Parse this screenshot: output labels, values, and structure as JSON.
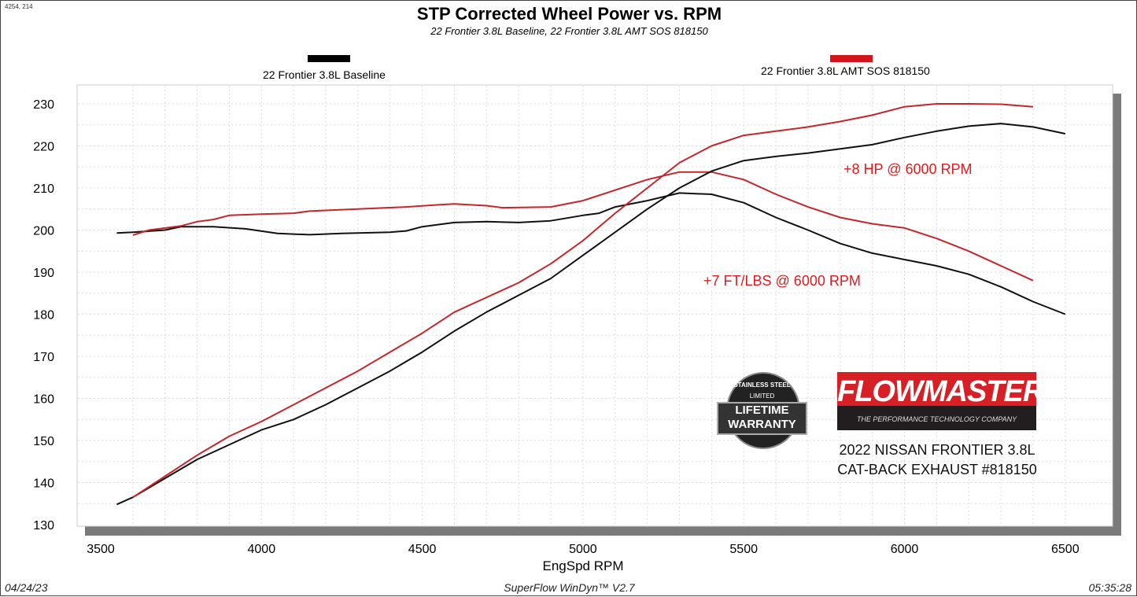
{
  "header": {
    "coord_readout": "4254, 214",
    "title": "STP Corrected Wheel Power vs. RPM",
    "subtitle": "22 Frontier 3.8L Baseline, 22 Frontier 3.8L AMT SOS 818150"
  },
  "footer": {
    "date": "04/24/23",
    "software": "SuperFlow WinDyn™ V2.7",
    "time": "05:35:28"
  },
  "logos": {
    "warranty": {
      "top": "STAINLESS STEEL",
      "brand": "FLOWMASTER",
      "mid": "LIMITED",
      "line1": "LIFETIME",
      "line2": "WARRANTY"
    },
    "flowmaster": {
      "name": "FLOWMASTER",
      "tagline": "THE PERFORMANCE TECHNOLOGY COMPANY"
    }
  },
  "caption": {
    "line1": "2022 NISSAN FRONTIER 3.8L",
    "line2": "CAT-BACK EXHAUST #818150"
  },
  "chart_data": {
    "type": "line",
    "title": "STP Corrected Wheel Power vs. RPM",
    "xlabel": "EngSpd  RPM",
    "ylabel": "",
    "xlim": [
      3420,
      6650
    ],
    "ylim": [
      130,
      232
    ],
    "xticks": [
      3500,
      4000,
      4500,
      5000,
      5500,
      6000,
      6500
    ],
    "yticks": [
      130,
      140,
      150,
      160,
      170,
      180,
      190,
      200,
      210,
      220,
      230
    ],
    "grid": true,
    "legend": [
      {
        "name": "22 Frontier 3.8L Baseline",
        "color": "#000000"
      },
      {
        "name": "22 Frontier 3.8L AMT SOS 818150",
        "color": "#d4141b"
      }
    ],
    "annotations": [
      "+8 HP @ 6000 RPM",
      "+7 FT/LBS @ 6000 RPM"
    ],
    "series": [
      {
        "run": "22 Frontier 3.8L Baseline",
        "color": "#111111",
        "x": [
          3550,
          3600,
          3700,
          3750,
          3850,
          3950,
          4050,
          4150,
          4250,
          4400,
          4450,
          4500,
          4600,
          4700,
          4800,
          4900,
          5000,
          5050,
          5100,
          5200,
          5300,
          5400,
          5500,
          5600,
          5700,
          5800,
          5900,
          6000,
          6100,
          6200,
          6300,
          6400,
          6500
        ],
        "y": [
          199.3,
          199.5,
          200,
          200.8,
          200.8,
          200.3,
          199.2,
          198.9,
          199.2,
          199.5,
          199.8,
          200.8,
          201.8,
          202,
          201.8,
          202.2,
          203.5,
          204,
          205.5,
          207,
          208.8,
          208.5,
          206.5,
          203,
          200,
          196.8,
          194.5,
          193,
          191.5,
          189.5,
          186.5,
          183,
          180
        ]
      },
      {
        "run": "22 Frontier 3.8L AMT SOS 818150",
        "color": "#c4262b",
        "x": [
          3600,
          3650,
          3750,
          3800,
          3850,
          3900,
          4000,
          4100,
          4150,
          4300,
          4450,
          4550,
          4600,
          4700,
          4750,
          4900,
          5000,
          5100,
          5200,
          5300,
          5400,
          5500,
          5600,
          5700,
          5800,
          5900,
          6000,
          6100,
          6200,
          6300,
          6400
        ],
        "y": [
          198.8,
          200,
          201,
          202,
          202.5,
          203.5,
          203.8,
          204,
          204.5,
          205,
          205.5,
          206,
          206.2,
          205.8,
          205.3,
          205.5,
          207,
          209.5,
          212,
          213.8,
          213.8,
          212,
          208.5,
          205.5,
          203,
          201.5,
          200.5,
          198,
          195,
          191.5,
          188
        ]
      },
      {
        "run": "22 Frontier 3.8L Baseline",
        "color": "#111111",
        "x": [
          3550,
          3600,
          3700,
          3800,
          3900,
          4000,
          4100,
          4200,
          4300,
          4400,
          4500,
          4600,
          4700,
          4800,
          4900,
          5000,
          5100,
          5200,
          5300,
          5400,
          5500,
          5600,
          5700,
          5800,
          5900,
          6000,
          6100,
          6200,
          6300,
          6400,
          6500
        ],
        "y": [
          134.8,
          136.5,
          141,
          145.5,
          149,
          152.5,
          155,
          158.5,
          162.5,
          166.5,
          171,
          176,
          180.5,
          184.5,
          188.5,
          194,
          199.5,
          205,
          210,
          214,
          216.5,
          217.5,
          218.3,
          219.3,
          220.3,
          222,
          223.5,
          224.7,
          225.3,
          224.5,
          222.9
        ]
      },
      {
        "run": "22 Frontier 3.8L AMT SOS 818150",
        "color": "#c4262b",
        "x": [
          3600,
          3700,
          3800,
          3900,
          4000,
          4100,
          4200,
          4300,
          4400,
          4500,
          4600,
          4700,
          4800,
          4900,
          5000,
          5100,
          5200,
          5300,
          5400,
          5500,
          5600,
          5700,
          5800,
          5900,
          6000,
          6100,
          6200,
          6300,
          6400
        ],
        "y": [
          136.5,
          141.5,
          146.5,
          151,
          154.5,
          158.5,
          162.5,
          166.5,
          171,
          175.5,
          180.5,
          184,
          187.5,
          192,
          197.5,
          204,
          210,
          216,
          220,
          222.5,
          223.5,
          224.5,
          225.8,
          227.3,
          229.3,
          230,
          230,
          229.9,
          229.3
        ]
      }
    ]
  }
}
